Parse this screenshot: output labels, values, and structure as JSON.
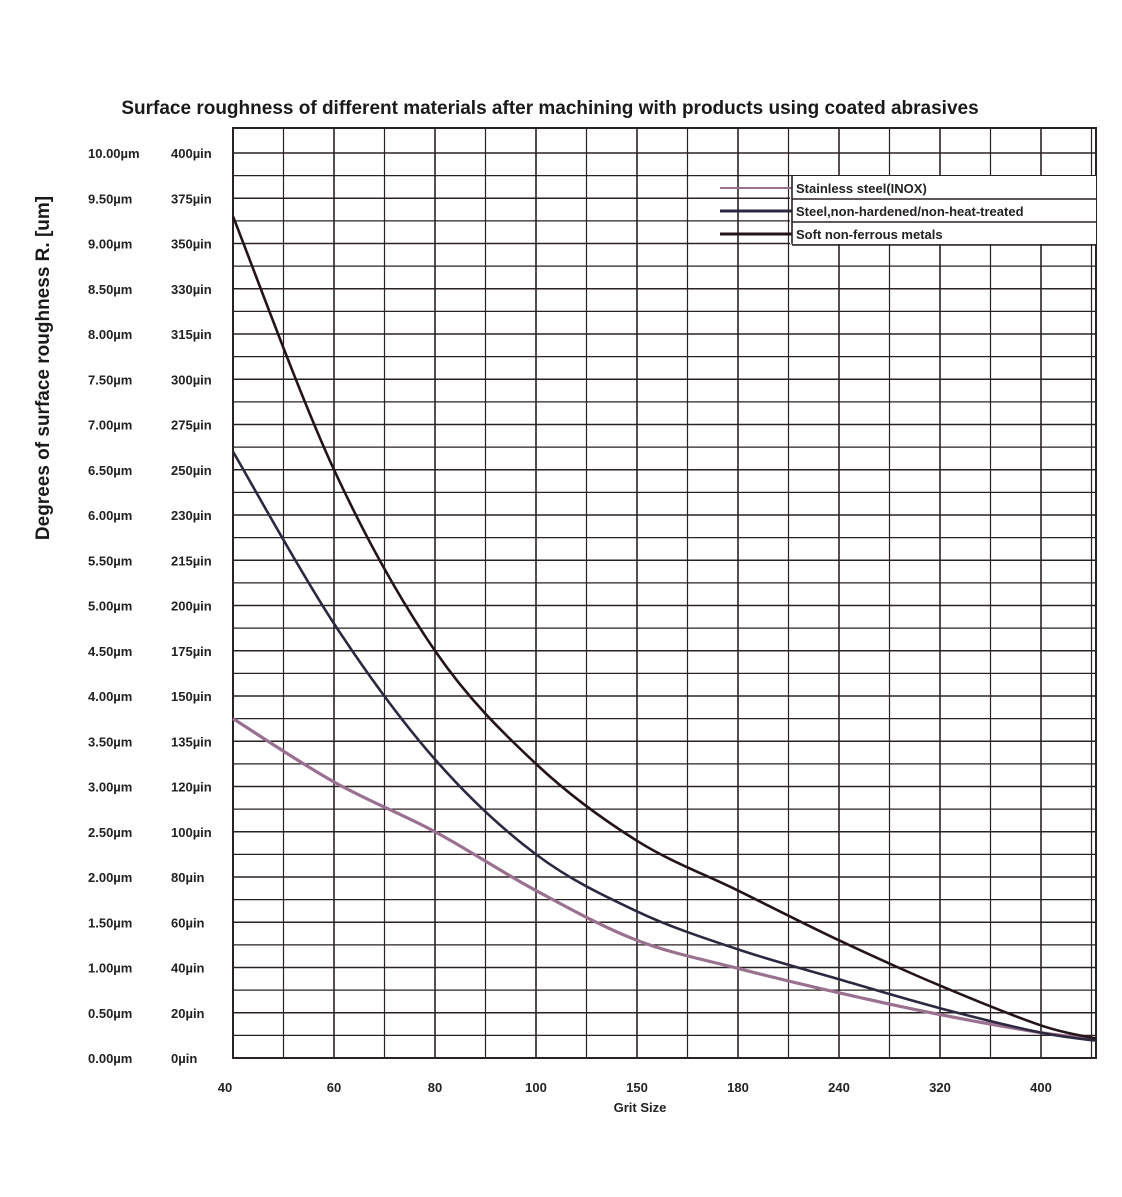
{
  "colors": {
    "grid": "#2a2222",
    "stainless": "#9a7090",
    "steel": "#2c2840",
    "soft": "#241418",
    "text": "#1a1a1a"
  },
  "chart_data": {
    "type": "line",
    "title": "Surface roughness of different materials after machining with products using coated abrasives",
    "xlabel": "Grit Size",
    "ylabel": "Degrees of surface roughness R. [um]",
    "x": [
      "40",
      "60",
      "80",
      "100",
      "150",
      "180",
      "240",
      "320",
      "400"
    ],
    "y_ticks_um": [
      "10.00µm",
      "9.50µm",
      "9.00µm",
      "8.50µm",
      "8.00µm",
      "7.50µm",
      "7.00µm",
      "6.50µm",
      "6.00µm",
      "5.50µm",
      "5.00µm",
      "4.50µm",
      "4.00µm",
      "3.50µm",
      "3.00µm",
      "2.50µm",
      "2.00µm",
      "1.50µm",
      "1.00µm",
      "0.50µm",
      "0.00µm"
    ],
    "y_ticks_uin": [
      "400µin",
      "375µin",
      "350µin",
      "330µin",
      "315µin",
      "300µin",
      "275µin",
      "250µin",
      "230µin",
      "215µin",
      "200µin",
      "175µin",
      "150µin",
      "135µin",
      "120µin",
      "100µin",
      "80µin",
      "60µin",
      "40µin",
      "20µin",
      "0µin"
    ],
    "ylim": [
      0,
      10
    ],
    "legend_position": "top-right",
    "series": [
      {
        "name": "Stainless steel(INOX)",
        "color": "#9a7090",
        "values": [
          3.75,
          3.05,
          2.5,
          1.85,
          1.3,
          0.99,
          0.72,
          0.48,
          0.28
        ]
      },
      {
        "name": "Steel,non-hardened/non-heat-treated",
        "color": "#2c2840",
        "values": [
          6.7,
          4.8,
          3.3,
          2.25,
          1.62,
          1.2,
          0.87,
          0.55,
          0.28
        ]
      },
      {
        "name": "Soft non-ferrous metals",
        "color": "#241418",
        "values": [
          9.3,
          6.5,
          4.5,
          3.25,
          2.4,
          1.85,
          1.3,
          0.8,
          0.36
        ]
      }
    ]
  }
}
